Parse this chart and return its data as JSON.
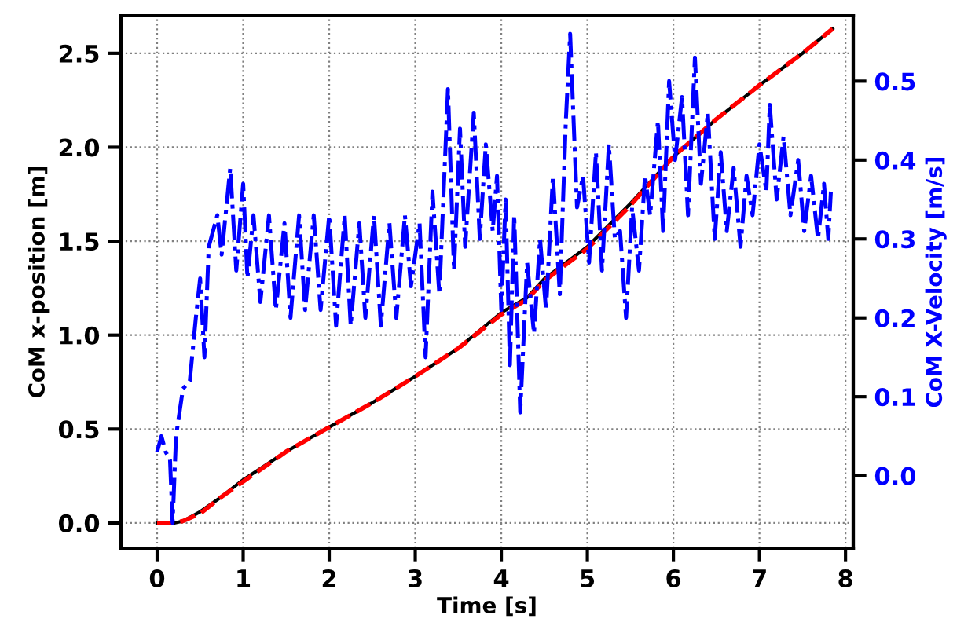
{
  "chart_data": {
    "type": "line",
    "xlabel": "Time [s]",
    "ylabel": "CoM x-position [m]",
    "y2label": "CoM X-Velocity [m/s]",
    "xlim": [
      -0.42,
      8.09
    ],
    "xticks": [
      0,
      1,
      2,
      3,
      4,
      5,
      6,
      7,
      8
    ],
    "ylim": [
      -0.134,
      2.7
    ],
    "yticks": [
      {
        "value": 0,
        "label": "0.0"
      },
      0.5,
      {
        "value": 1,
        "label": "1.0"
      },
      1.5,
      {
        "value": 2,
        "label": "2.0"
      },
      2.5
    ],
    "y2lim": [
      -0.092,
      0.583
    ],
    "y2ticks": [
      {
        "value": 0,
        "label": "0.0"
      },
      0.1,
      0.2,
      0.3,
      0.4,
      0.5
    ],
    "grid": true,
    "series": [
      {
        "color": "#000000",
        "line_style": "solid",
        "x": [
          0,
          0.2,
          0.3,
          0.5,
          0.75,
          1,
          1.5,
          2,
          2.5,
          3,
          3.5,
          4,
          4.3,
          4.5,
          5,
          5.5,
          6,
          6.5,
          7,
          7.5,
          7.85
        ],
        "values": [
          0,
          0,
          0.01,
          0.06,
          0.14,
          0.23,
          0.38,
          0.51,
          0.64,
          0.78,
          0.93,
          1.12,
          1.2,
          1.3,
          1.47,
          1.7,
          1.95,
          2.15,
          2.33,
          2.5,
          2.63
        ]
      },
      {
        "color": "#ff0000",
        "line_style": "dashed",
        "x": [
          0,
          0.2,
          0.3,
          0.5,
          0.75,
          1,
          1.5,
          2,
          2.5,
          3,
          3.5,
          4,
          4.3,
          4.5,
          5,
          5.5,
          6,
          6.5,
          7,
          7.5,
          7.85
        ],
        "values": [
          0,
          0,
          0.01,
          0.05,
          0.14,
          0.22,
          0.38,
          0.51,
          0.64,
          0.78,
          0.93,
          1.11,
          1.19,
          1.29,
          1.46,
          1.69,
          1.95,
          2.15,
          2.33,
          2.5,
          2.63
        ]
      },
      {
        "color": "#0000ff",
        "line_style": "dashdot",
        "axis": "y2",
        "x": [
          0,
          0.05,
          0.1,
          0.15,
          0.18,
          0.22,
          0.3,
          0.38,
          0.45,
          0.5,
          0.55,
          0.6,
          0.7,
          0.75,
          0.85,
          0.92,
          1.0,
          1.05,
          1.12,
          1.2,
          1.3,
          1.38,
          1.48,
          1.55,
          1.65,
          1.72,
          1.82,
          1.9,
          2.0,
          2.08,
          2.18,
          2.25,
          2.35,
          2.42,
          2.52,
          2.6,
          2.7,
          2.78,
          2.88,
          2.95,
          3.05,
          3.12,
          3.2,
          3.28,
          3.38,
          3.45,
          3.52,
          3.58,
          3.68,
          3.75,
          3.82,
          3.9,
          3.95,
          4.0,
          4.05,
          4.1,
          4.15,
          4.22,
          4.3,
          4.38,
          4.45,
          4.52,
          4.6,
          4.68,
          4.75,
          4.8,
          4.88,
          4.95,
          5.02,
          5.1,
          5.17,
          5.25,
          5.32,
          5.38,
          5.45,
          5.52,
          5.6,
          5.67,
          5.73,
          5.82,
          5.88,
          5.95,
          6.02,
          6.1,
          6.17,
          6.25,
          6.32,
          6.4,
          6.48,
          6.55,
          6.62,
          6.7,
          6.78,
          6.85,
          6.92,
          7.0,
          7.08,
          7.12,
          7.2,
          7.28,
          7.36,
          7.45,
          7.52,
          7.6,
          7.68,
          7.75,
          7.8,
          7.83
        ],
        "values": [
          0.03,
          0.05,
          0.03,
          0.02,
          -0.06,
          0.05,
          0.11,
          0.12,
          0.2,
          0.25,
          0.15,
          0.29,
          0.33,
          0.28,
          0.39,
          0.26,
          0.37,
          0.25,
          0.33,
          0.22,
          0.33,
          0.21,
          0.32,
          0.2,
          0.33,
          0.21,
          0.33,
          0.21,
          0.33,
          0.19,
          0.33,
          0.19,
          0.32,
          0.2,
          0.33,
          0.19,
          0.32,
          0.2,
          0.33,
          0.24,
          0.32,
          0.15,
          0.36,
          0.23,
          0.49,
          0.26,
          0.44,
          0.29,
          0.46,
          0.3,
          0.42,
          0.31,
          0.38,
          0.21,
          0.35,
          0.14,
          0.33,
          0.08,
          0.27,
          0.18,
          0.3,
          0.21,
          0.38,
          0.23,
          0.45,
          0.56,
          0.34,
          0.38,
          0.27,
          0.41,
          0.26,
          0.42,
          0.3,
          0.31,
          0.2,
          0.34,
          0.26,
          0.38,
          0.33,
          0.45,
          0.31,
          0.5,
          0.4,
          0.48,
          0.33,
          0.53,
          0.37,
          0.46,
          0.3,
          0.41,
          0.31,
          0.39,
          0.29,
          0.38,
          0.33,
          0.42,
          0.36,
          0.47,
          0.35,
          0.43,
          0.33,
          0.4,
          0.31,
          0.38,
          0.3,
          0.37,
          0.3,
          0.36
        ]
      }
    ]
  }
}
